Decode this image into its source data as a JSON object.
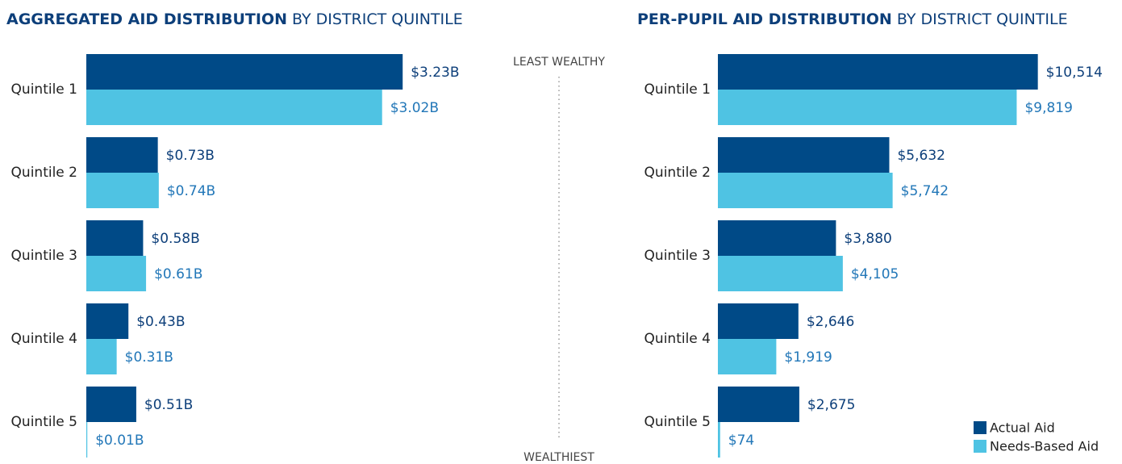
{
  "chart_data": [
    {
      "type": "bar",
      "orientation": "horizontal",
      "title": "AGGREGATED AID DISTRIBUTION",
      "subtitle": "BY DISTRICT QUINTILE",
      "categories": [
        "Quintile 1",
        "Quintile 2",
        "Quintile 3",
        "Quintile 4",
        "Quintile 5"
      ],
      "xlim": [
        0,
        3.5
      ],
      "series": [
        {
          "color": "#004a87",
          "label_color": "#0d3f7a",
          "values": [
            3.23,
            0.73,
            0.58,
            0.43,
            0.51
          ],
          "value_labels": [
            "$3.23B",
            "$0.73B",
            "$0.58B",
            "$0.43B",
            "$0.51B"
          ]
        },
        {
          "color": "#4fc3e3",
          "label_color": "#2277b8",
          "values": [
            3.02,
            0.74,
            0.61,
            0.31,
            0.01
          ],
          "value_labels": [
            "$3.02B",
            "$0.74B",
            "$0.61B",
            "$0.31B",
            "$0.01B"
          ]
        }
      ]
    },
    {
      "type": "bar",
      "orientation": "horizontal",
      "title": "PER-PUPIL AID DISTRIBUTION",
      "subtitle": "BY DISTRICT QUINTILE",
      "categories": [
        "Quintile 1",
        "Quintile 2",
        "Quintile 3",
        "Quintile 4",
        "Quintile 5"
      ],
      "xlim": [
        0,
        11000
      ],
      "legend": "lower right",
      "series": [
        {
          "name": "Actual Aid",
          "color": "#004a87",
          "label_color": "#0d3f7a",
          "values": [
            10514,
            5632,
            3880,
            2646,
            2675
          ],
          "value_labels": [
            "$10,514",
            "$5,632",
            "$3,880",
            "$2,646",
            "$2,675"
          ]
        },
        {
          "name": "Needs-Based Aid",
          "color": "#4fc3e3",
          "label_color": "#2277b8",
          "values": [
            9819,
            5742,
            4105,
            1919,
            74
          ],
          "value_labels": [
            "$9,819",
            "$5,742",
            "$4,105",
            "$1,919",
            "$74"
          ]
        }
      ]
    }
  ],
  "annotations": {
    "top": "LEAST WEALTHY",
    "bottom": "WEALTHIEST"
  }
}
